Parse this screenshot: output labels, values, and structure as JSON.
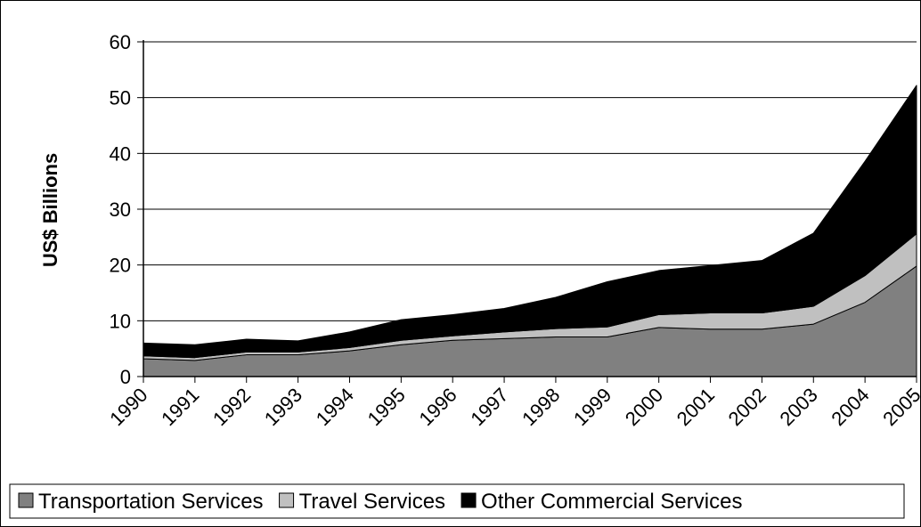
{
  "chart_data": {
    "type": "area",
    "stacked": true,
    "categories": [
      "1990",
      "1991",
      "1992",
      "1993",
      "1994",
      "1995",
      "1996",
      "1997",
      "1998",
      "1999",
      "2000",
      "2001",
      "2002",
      "2003",
      "2004",
      "2005"
    ],
    "series": [
      {
        "name": "Transportation Services",
        "color": "#808080",
        "values": [
          3.2,
          2.9,
          3.9,
          3.9,
          4.6,
          5.7,
          6.5,
          6.8,
          7.1,
          7.1,
          8.8,
          8.5,
          8.5,
          9.4,
          13.3,
          19.8
        ]
      },
      {
        "name": "Travel Services",
        "color": "#c0c0c0",
        "values": [
          0.5,
          0.5,
          0.5,
          0.5,
          0.6,
          0.8,
          0.8,
          1.2,
          1.5,
          1.8,
          2.3,
          2.9,
          2.9,
          3.2,
          4.8,
          5.8
        ]
      },
      {
        "name": "Other Commercial Services",
        "color": "#000000",
        "values": [
          2.3,
          2.3,
          2.3,
          2.0,
          2.8,
          3.7,
          3.8,
          4.2,
          5.6,
          8.1,
          7.9,
          8.5,
          9.4,
          13.1,
          20.5,
          26.6
        ]
      }
    ],
    "ylabel": "US$ Billions",
    "ylim": [
      0,
      60
    ],
    "yticks": [
      "0",
      "10",
      "20",
      "30",
      "40",
      "50",
      "60"
    ],
    "grid": true,
    "legend_position": "bottom"
  }
}
